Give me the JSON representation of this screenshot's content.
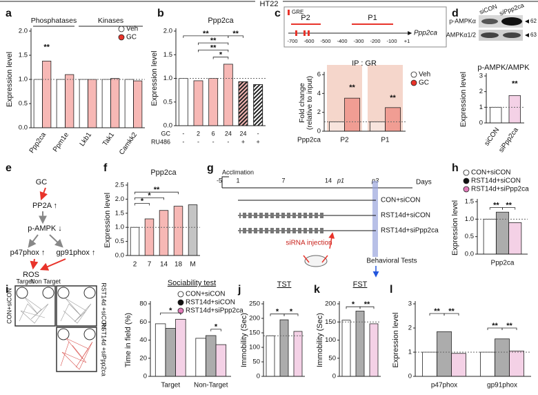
{
  "figure_title": "HT22",
  "panel_labels": [
    "a",
    "b",
    "c",
    "d",
    "e",
    "f",
    "g",
    "h",
    "i",
    "j",
    "k",
    "l"
  ],
  "promoter_diagram": {
    "legend": "GRE",
    "regions": [
      "P2",
      "P1"
    ],
    "ticks": [
      "-700",
      "-600",
      "-500",
      "-400",
      "-300",
      "-200",
      "-100",
      "+1"
    ],
    "gene": "Ppp2ca"
  },
  "blot": {
    "lanes": [
      "siCON",
      "siPpp2ca"
    ],
    "bands": [
      "p-AMPKα",
      "AMPKα1/2"
    ],
    "sizes": [
      "62",
      "63"
    ]
  },
  "pathway": {
    "nodes": [
      "GC",
      "PP2A ↑",
      "p-AMPK ↓",
      "p47phox ↑",
      "gp91phox ↑",
      "ROS"
    ]
  },
  "timeline": {
    "event": "Acclimation",
    "ticks": [
      "-5",
      "1",
      "7",
      "14",
      "p1",
      "p3"
    ],
    "unit": "Days",
    "groups": [
      "CON+siCON",
      "RST14d+siCON",
      "RST14d+siPpp2ca"
    ],
    "injection": "siRNA injection",
    "tests": "Behavioral Tests"
  },
  "tracks": {
    "zones": [
      "Target",
      "Non Target"
    ],
    "groups": [
      "CON+siCON",
      "RST14d +siCON",
      "RST14d +siPpp2ca"
    ]
  },
  "chart_data": [
    {
      "type": "bar",
      "ylabel": "Expression level",
      "group_labels": [
        "Phosphatases",
        "Kinases"
      ],
      "categories": [
        "Ppp2ca",
        "Ppm1e",
        "Lkb1",
        "Tak1",
        "Camkk2"
      ],
      "series": [
        {
          "name": "Veh",
          "color": "#ffffff",
          "values": [
            1.0,
            1.0,
            1.0,
            1.0,
            1.0
          ]
        },
        {
          "name": "GC",
          "color": "#e8332a",
          "values": [
            1.38,
            1.1,
            1.0,
            1.02,
            0.97
          ]
        }
      ],
      "ylim": [
        0,
        2
      ],
      "yticks": [
        {
          "value": 0,
          "label": "0.0"
        },
        0.5,
        {
          "value": 1,
          "label": "1.0"
        },
        1.5,
        {
          "value": 2,
          "label": "2.0"
        }
      ],
      "reference_line": 1,
      "annotations": [
        "**"
      ]
    },
    {
      "type": "bar",
      "title": "Ppp2ca",
      "ylabel": "Expression level",
      "condition_labels": [
        "GC",
        "RU486"
      ],
      "conditions": [
        [
          "-",
          "2",
          "6",
          "24",
          "24",
          "-"
        ],
        [
          "-",
          "-",
          "-",
          "-",
          "+",
          "+"
        ]
      ],
      "values": [
        1.0,
        0.95,
        1.0,
        1.3,
        0.93,
        0.87
      ],
      "colors": [
        "#ffffff",
        "#e8332a",
        "#e8332a",
        "#e8332a",
        "#e8332a",
        "#ffffff"
      ],
      "hatched": [
        false,
        false,
        false,
        false,
        true,
        true
      ],
      "ylim": [
        0,
        2
      ],
      "yticks": [
        {
          "value": 0,
          "label": "0.0"
        },
        0.5,
        {
          "value": 1,
          "label": "1.0"
        },
        1.5,
        {
          "value": 2,
          "label": "2.0"
        }
      ],
      "reference_line": 1,
      "annotations": [
        "*",
        "**",
        "**",
        "**",
        "**"
      ]
    },
    {
      "type": "bar",
      "title": "IP : GR",
      "ylabel": [
        "Fold change",
        "(relative to input)"
      ],
      "xlabel": "Ppp2ca",
      "categories": [
        "P2",
        "P1"
      ],
      "series": [
        {
          "name": "Veh",
          "color": "#ffffff",
          "values": [
            1.0,
            1.0
          ]
        },
        {
          "name": "GC",
          "color": "#e8332a",
          "values": [
            3.5,
            2.5
          ]
        }
      ],
      "ylim": [
        0,
        6
      ],
      "yticks": [
        0,
        2,
        4,
        6
      ],
      "reference_line": 1,
      "annotations": [
        "**",
        "**"
      ]
    },
    {
      "type": "bar",
      "title": "p-AMPK/AMPK",
      "ylabel": "Expression level",
      "categories": [
        "siCON",
        "siPpp2ca"
      ],
      "values": [
        1.0,
        1.75
      ],
      "colors": [
        "#ffffff",
        "#e07ab8"
      ],
      "ylim": [
        0,
        3
      ],
      "yticks": [
        0,
        1,
        2,
        3
      ],
      "reference_line": 1,
      "annotations": [
        "**"
      ]
    },
    {
      "type": "bar",
      "title": "Ppp2ca",
      "ylabel": "Expression level",
      "categories": [
        "2",
        "7",
        "14",
        "18",
        "M"
      ],
      "values": [
        1.0,
        1.3,
        1.6,
        1.75,
        1.8
      ],
      "colors": [
        "#ffffff",
        "#e8332a",
        "#e8332a",
        "#e8332a",
        "#555555"
      ],
      "ylim": [
        0,
        2.5
      ],
      "yticks": [
        {
          "value": 0,
          "label": "0.0"
        },
        0.5,
        {
          "value": 1,
          "label": "1.0"
        },
        1.5,
        {
          "value": 2,
          "label": "2.0"
        },
        2.5
      ],
      "reference_line": 1,
      "annotations": [
        "*",
        "*",
        "**"
      ]
    },
    {
      "type": "bar",
      "ylabel": "Expression level",
      "categories": [
        "Ppp2ca"
      ],
      "series": [
        {
          "name": "CON+siCON",
          "color": "#ffffff",
          "values": [
            1.0
          ]
        },
        {
          "name": "RST14d+siCON",
          "color": "#111111",
          "values": [
            1.2
          ]
        },
        {
          "name": "RST14d+siPpp2ca",
          "color": "#e07ab8",
          "values": [
            0.9
          ]
        }
      ],
      "ylim": [
        0,
        1.5
      ],
      "yticks": [
        {
          "value": 0,
          "label": "0.0"
        },
        0.5,
        {
          "value": 1,
          "label": "1.0"
        },
        1.5
      ],
      "reference_line": 1,
      "annotations": [
        "**",
        "**"
      ]
    },
    {
      "type": "bar",
      "title": "Sociability test",
      "ylabel": "Time in field (%)",
      "categories": [
        "Target",
        "Non-Target"
      ],
      "series": [
        {
          "name": "CON+siCON",
          "color": "#ffffff",
          "values": [
            58,
            42
          ]
        },
        {
          "name": "RST14d+siCON",
          "color": "#111111",
          "values": [
            53,
            45
          ]
        },
        {
          "name": "RST14d+siPpp2ca",
          "color": "#e07ab8",
          "values": [
            63,
            35
          ]
        }
      ],
      "ylim": [
        0,
        80
      ],
      "yticks": [
        0,
        20,
        40,
        60,
        80
      ],
      "annotations": [
        "*",
        "*"
      ]
    },
    {
      "type": "bar",
      "title": "TST",
      "ylabel": "Immobility (Sec)",
      "values": [
        140,
        195,
        155
      ],
      "colors": [
        "#ffffff",
        "#111111",
        "#e07ab8"
      ],
      "ylim": [
        0,
        250
      ],
      "yticks": [
        0,
        50,
        100,
        150,
        200,
        250
      ],
      "reference_line": 140,
      "annotations": [
        "*",
        "*"
      ]
    },
    {
      "type": "bar",
      "title": "FST",
      "ylabel": "Immobility (Sec)",
      "values": [
        155,
        180,
        145
      ],
      "colors": [
        "#ffffff",
        "#111111",
        "#e07ab8"
      ],
      "ylim": [
        0,
        200
      ],
      "yticks": [
        0,
        50,
        100,
        150,
        200
      ],
      "reference_line": 150,
      "annotations": [
        "*",
        "**"
      ]
    },
    {
      "type": "bar",
      "ylabel": "Expression level",
      "categories": [
        "p47phox",
        "gp91phox"
      ],
      "series": [
        {
          "color": "#ffffff",
          "values": [
            1.0,
            1.0
          ]
        },
        {
          "color": "#111111",
          "values": [
            1.85,
            1.55
          ]
        },
        {
          "color": "#e07ab8",
          "values": [
            0.95,
            1.05
          ]
        }
      ],
      "ylim": [
        0,
        3
      ],
      "yticks": [
        0,
        1,
        2,
        3
      ],
      "reference_line": 1,
      "annotations": [
        "**",
        "**",
        "**",
        "**"
      ]
    }
  ]
}
